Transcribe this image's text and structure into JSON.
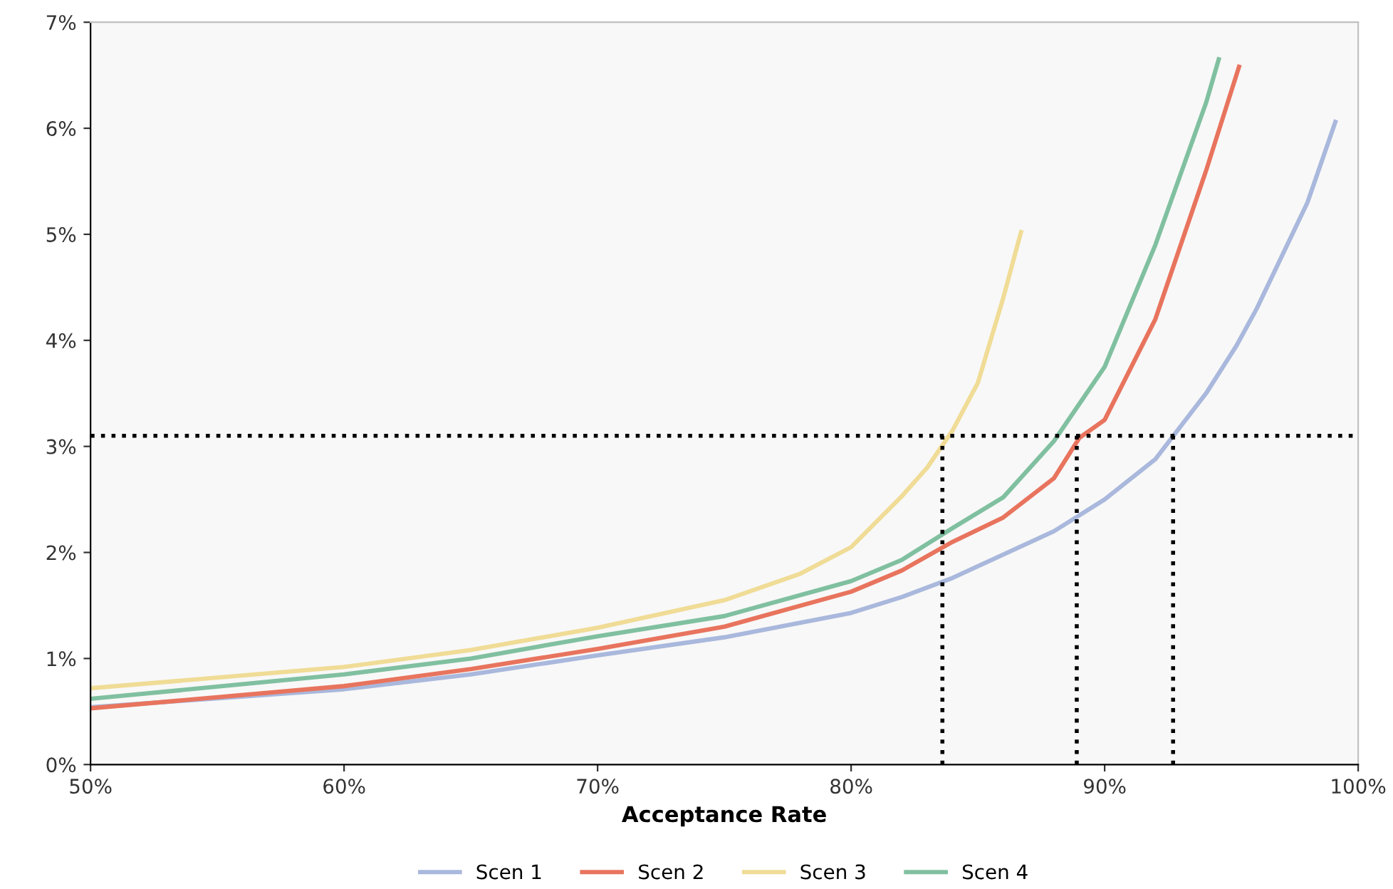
{
  "chart_data": {
    "type": "line",
    "xlabel": "Acceptance Rate",
    "xlim": [
      50,
      100
    ],
    "xticks": [
      {
        "value": 50,
        "label": "50%"
      },
      {
        "value": 60,
        "label": "60%"
      },
      {
        "value": 70,
        "label": "70%"
      },
      {
        "value": 80,
        "label": "80%"
      },
      {
        "value": 90,
        "label": "90%"
      },
      {
        "value": 100,
        "label": "100%"
      }
    ],
    "ylim": [
      0,
      7
    ],
    "yticks": [
      {
        "value": 0,
        "label": "0%"
      },
      {
        "value": 1,
        "label": "1%"
      },
      {
        "value": 2,
        "label": "2%"
      },
      {
        "value": 3,
        "label": "3%"
      },
      {
        "value": 4,
        "label": "4%"
      },
      {
        "value": 5,
        "label": "5%"
      },
      {
        "value": 6,
        "label": "6%"
      },
      {
        "value": 7,
        "label": "7%"
      }
    ],
    "grid": false,
    "legend": "bottom",
    "marker": "none",
    "series": [
      {
        "name": "Scen 1",
        "color": "#a9b8dc",
        "x": [
          50,
          60,
          65,
          70,
          75,
          80,
          82,
          84,
          86,
          88,
          90,
          92,
          94,
          95.2,
          96,
          98,
          99.1
        ],
        "values": [
          0.54,
          0.71,
          0.85,
          1.03,
          1.2,
          1.43,
          1.58,
          1.76,
          1.98,
          2.2,
          2.5,
          2.88,
          3.5,
          3.95,
          4.3,
          5.3,
          6.06
        ]
      },
      {
        "name": "Scen 2",
        "color": "#e8745e",
        "x": [
          50,
          60,
          65,
          70,
          75,
          80,
          82,
          84,
          86,
          88,
          89,
          90,
          92,
          94,
          95.3
        ],
        "values": [
          0.53,
          0.74,
          0.9,
          1.09,
          1.3,
          1.63,
          1.83,
          2.1,
          2.33,
          2.7,
          3.08,
          3.25,
          4.2,
          5.6,
          6.58
        ]
      },
      {
        "name": "Scen 3",
        "color": "#f0dc96",
        "x": [
          50,
          60,
          65,
          70,
          75,
          78,
          80,
          82,
          83,
          84,
          85,
          86,
          86.7
        ],
        "values": [
          0.72,
          0.92,
          1.08,
          1.29,
          1.55,
          1.8,
          2.05,
          2.53,
          2.8,
          3.15,
          3.6,
          4.4,
          5.02
        ]
      },
      {
        "name": "Scen 4",
        "color": "#80c0a0",
        "x": [
          50,
          60,
          65,
          70,
          75,
          80,
          82,
          84,
          86,
          88,
          90,
          92,
          94,
          94.5
        ],
        "values": [
          0.62,
          0.85,
          1.0,
          1.21,
          1.4,
          1.73,
          1.93,
          2.23,
          2.52,
          3.05,
          3.75,
          4.9,
          6.24,
          6.65
        ]
      },
      {
        "color": "#000000",
        "line_style": "dotted",
        "x": [
          83.6,
          83.6
        ],
        "values": [
          0,
          3.1
        ]
      },
      {
        "color": "#000000",
        "line_style": "dotted",
        "x": [
          88.9,
          88.9
        ],
        "values": [
          0,
          3.1
        ]
      },
      {
        "color": "#000000",
        "line_style": "dotted",
        "x": [
          92.7,
          92.7
        ],
        "values": [
          0,
          3.1
        ]
      }
    ],
    "ref_lines": [
      {
        "axis": "y",
        "value": 3.1,
        "color": "#000000",
        "line_style": "dotted"
      }
    ]
  }
}
